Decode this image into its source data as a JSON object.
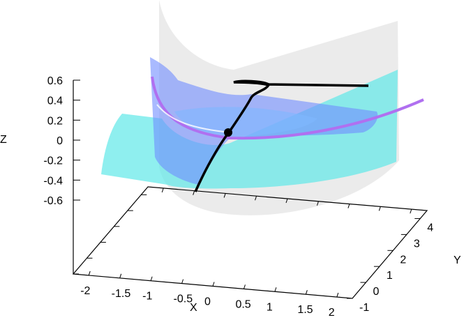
{
  "chart_data": {
    "type": "surface3d",
    "xlabel": "X",
    "ylabel": "Y",
    "zlabel": "Z",
    "xlim": [
      -2.25,
      2.25
    ],
    "ylim": [
      -1,
      4.5
    ],
    "zlim": [
      -0.6,
      0.6
    ],
    "xticks": [
      "-2",
      "-1.5",
      "-1",
      "-0.5",
      "0",
      "0.5",
      "1",
      "1.5",
      "2"
    ],
    "yticks": [
      "-1",
      "0",
      "1",
      "2",
      "3",
      "4"
    ],
    "zticks": [
      "0.6",
      "0.4",
      "0.2",
      "0",
      "-0.2",
      "-0.4",
      "-0.6"
    ],
    "grid": false,
    "colors": {
      "gray_surface": "#e6e6e6",
      "cyan_surface": "#5fe8e8",
      "blue_surface": "#6f8cff",
      "violet_curve": "#b070f0",
      "black_curve": "#000000"
    }
  }
}
